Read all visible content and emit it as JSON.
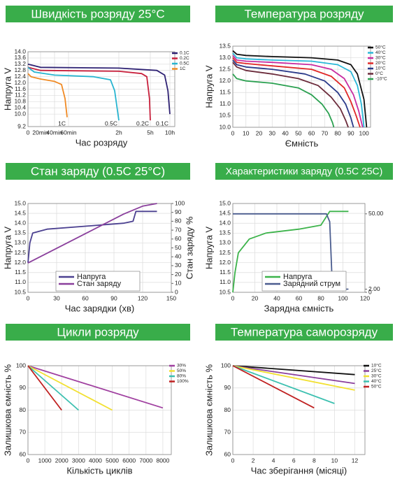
{
  "chart_data": [
    {
      "type": "line",
      "title": "Швидкість розряду 25°C",
      "xlabel": "Час розряду",
      "ylabel": "Напруга V",
      "xlim": [
        0,
        600
      ],
      "xticks": [
        0,
        {
          "value": 20,
          "label": "20min"
        },
        {
          "value": 40,
          "label": "40min"
        },
        {
          "value": 60,
          "label": "60min"
        },
        {
          "value": 120,
          "label": "2h"
        },
        {
          "value": 300,
          "label": "5h"
        },
        {
          "value": 600,
          "label": "10h"
        }
      ],
      "ylim": [
        9.2,
        14.0
      ],
      "yticks": [
        9.2,
        {
          "value": 10,
          "label": "10.0"
        },
        10.4,
        10.8,
        11.2,
        11.6,
        {
          "value": 12,
          "label": "12.0"
        },
        12.4,
        12.8,
        13.2,
        13.6,
        {
          "value": 14,
          "label": "14.0"
        }
      ],
      "grid": true,
      "legend": "upper right",
      "end_labels": true,
      "series": [
        {
          "name": "0.1C",
          "color": "#2e2173",
          "x": [
            0,
            20,
            120,
            400,
            520,
            570,
            600
          ],
          "values": [
            13.2,
            13.0,
            12.95,
            12.8,
            12.5,
            11.5,
            10.0
          ]
        },
        {
          "name": "0.2C",
          "color": "#c8203c",
          "x": [
            0,
            20,
            120,
            250,
            280,
            295,
            300
          ],
          "values": [
            13.0,
            12.8,
            12.75,
            12.6,
            12.4,
            11.0,
            9.6
          ]
        },
        {
          "name": "0.5C",
          "color": "#27b4d0",
          "x": [
            0,
            10,
            40,
            90,
            110,
            115,
            120
          ],
          "values": [
            13.0,
            12.7,
            12.5,
            12.4,
            12.2,
            11.5,
            9.6
          ]
        },
        {
          "name": "1C",
          "color": "#f08a24",
          "x": [
            0,
            5,
            20,
            40,
            50,
            55,
            58
          ],
          "values": [
            12.6,
            12.4,
            12.25,
            12.1,
            11.9,
            11.0,
            9.8
          ]
        }
      ]
    },
    {
      "type": "line",
      "title": "Температура розряду",
      "xlabel": "Ємність",
      "ylabel": "Напруга V",
      "xlim": [
        0,
        105
      ],
      "xticks": [
        0,
        10,
        20,
        30,
        40,
        50,
        60,
        70,
        80,
        90,
        100
      ],
      "ylim": [
        10.0,
        13.5
      ],
      "yticks": [
        {
          "value": 10,
          "label": "10.0"
        },
        10.5,
        {
          "value": 11,
          "label": "11.0"
        },
        11.5,
        {
          "value": 12,
          "label": "12.0"
        },
        12.5,
        {
          "value": 13,
          "label": "13.0"
        },
        13.5
      ],
      "grid": true,
      "legend": "upper right",
      "series": [
        {
          "name": "50°C",
          "color": "#111111",
          "x": [
            0,
            3,
            10,
            30,
            60,
            80,
            90,
            95,
            100,
            102
          ],
          "values": [
            13.3,
            13.15,
            13.1,
            13.05,
            13.0,
            12.9,
            12.7,
            12.3,
            11.2,
            10.0
          ]
        },
        {
          "name": "40°C",
          "color": "#2ab8d8",
          "x": [
            0,
            3,
            10,
            30,
            60,
            80,
            90,
            95,
            98,
            100
          ],
          "values": [
            13.2,
            13.0,
            12.95,
            12.9,
            12.85,
            12.7,
            12.4,
            11.8,
            11.0,
            10.0
          ]
        },
        {
          "name": "30°C",
          "color": "#c82ca0",
          "x": [
            0,
            3,
            10,
            30,
            60,
            75,
            85,
            92,
            96,
            99
          ],
          "values": [
            13.1,
            12.9,
            12.85,
            12.8,
            12.7,
            12.5,
            12.1,
            11.4,
            10.7,
            10.0
          ]
        },
        {
          "name": "20°C",
          "color": "#e02828",
          "x": [
            0,
            3,
            10,
            30,
            60,
            75,
            85,
            90,
            94,
            97
          ],
          "values": [
            13.0,
            12.8,
            12.75,
            12.65,
            12.5,
            12.2,
            11.7,
            11.1,
            10.5,
            10.0
          ]
        },
        {
          "name": "10°C",
          "color": "#2a3a8a",
          "x": [
            0,
            3,
            10,
            30,
            55,
            70,
            80,
            86,
            90,
            92
          ],
          "values": [
            12.9,
            12.7,
            12.6,
            12.5,
            12.3,
            12.0,
            11.5,
            11.0,
            10.4,
            10.0
          ]
        },
        {
          "name": "0°C",
          "color": "#6b2b3b",
          "x": [
            0,
            3,
            10,
            30,
            50,
            65,
            75,
            82,
            86,
            88
          ],
          "values": [
            12.8,
            12.6,
            12.45,
            12.3,
            12.1,
            11.8,
            11.3,
            10.8,
            10.3,
            10.0
          ]
        },
        {
          "name": "-10°C",
          "color": "#2aa050",
          "x": [
            0,
            3,
            10,
            30,
            50,
            60,
            68,
            73,
            76,
            77
          ],
          "values": [
            12.3,
            12.1,
            12.0,
            11.9,
            11.7,
            11.4,
            11.0,
            10.6,
            10.2,
            10.0
          ]
        }
      ]
    },
    {
      "type": "line",
      "title": "Стан заряду (0.5C 25°C)",
      "xlabel": "Час зарядки (хв)",
      "ylabel": "Напруга V",
      "y2label": "Стан заряду %",
      "xlim": [
        0,
        150
      ],
      "xticks": [
        0,
        30,
        60,
        90,
        120,
        150
      ],
      "ylim": [
        10.5,
        15.0
      ],
      "yticks": [
        10.5,
        {
          "value": 11,
          "label": "11.0"
        },
        11.5,
        {
          "value": 12,
          "label": "12.0"
        },
        12.5,
        {
          "value": 13,
          "label": "13.0"
        },
        13.5,
        {
          "value": 14,
          "label": "14.0"
        },
        14.5,
        {
          "value": 15,
          "label": "15.0"
        }
      ],
      "y2lim": [
        0,
        100
      ],
      "y2ticks": [
        0,
        10,
        20,
        30,
        40,
        50,
        60,
        70,
        80,
        90,
        100
      ],
      "grid": true,
      "legend": "lower center",
      "series": [
        {
          "name": "Напруга",
          "color": "#4b4090",
          "x": [
            0,
            2,
            5,
            20,
            60,
            100,
            110,
            113,
            135
          ],
          "values": [
            12.0,
            13.0,
            13.5,
            13.7,
            13.85,
            14.0,
            14.1,
            14.6,
            14.6
          ]
        },
        {
          "name": "Стан заряду",
          "color": "#8a3f9c",
          "axis": "y2",
          "x": [
            0,
            60,
            100,
            120,
            135
          ],
          "values": [
            33,
            66,
            88,
            97,
            100
          ]
        }
      ]
    },
    {
      "type": "line",
      "title": "Характеристики заряду (0.5C 25C)",
      "xlabel": "Зарядна ємність",
      "ylabel": "Напруга V",
      "xlim": [
        0,
        120
      ],
      "xticks": [
        0,
        20,
        40,
        60,
        80,
        100,
        120
      ],
      "ylim": [
        10.5,
        15.0
      ],
      "yticks": [
        10.5,
        {
          "value": 11,
          "label": "11.0"
        },
        11.5,
        {
          "value": 12,
          "label": "12.0"
        },
        12.5,
        {
          "value": 13,
          "label": "13.0"
        },
        13.5,
        {
          "value": 14,
          "label": "14.0"
        },
        14.5,
        {
          "value": 15,
          "label": "15.0"
        }
      ],
      "y2lim": [
        0,
        56.6
      ],
      "y2ticks": [
        0,
        {
          "value": 2,
          "label": "2.00"
        },
        {
          "value": 50,
          "label": "50.00"
        }
      ],
      "grid": true,
      "legend": "lower center",
      "series": [
        {
          "name": "Напруга",
          "color": "#3cb34a",
          "x": [
            0,
            2,
            5,
            15,
            30,
            60,
            80,
            88,
            105
          ],
          "values": [
            10.5,
            11.5,
            12.5,
            13.2,
            13.5,
            13.7,
            13.9,
            14.6,
            14.6
          ]
        },
        {
          "name": "Зарядний струм",
          "color": "#4b5d8f",
          "axis": "y2",
          "x": [
            0,
            85,
            88,
            90,
            95,
            100,
            105
          ],
          "values": [
            50,
            50,
            45,
            10,
            4,
            2,
            2
          ]
        }
      ]
    },
    {
      "type": "line",
      "title": "Цикли розряду",
      "xlabel": "Кількість циклів",
      "ylabel": "Залишкова ємність %",
      "xlim": [
        0,
        8500
      ],
      "xticks": [
        0,
        1000,
        2000,
        3000,
        4000,
        5000,
        6000,
        7000,
        8000
      ],
      "ylim": [
        60,
        100
      ],
      "yticks": [
        60,
        70,
        80,
        90,
        100
      ],
      "grid": true,
      "legend": "upper right",
      "series": [
        {
          "name": "30%",
          "color": "#a040a0",
          "x": [
            0,
            8000
          ],
          "values": [
            100,
            81
          ]
        },
        {
          "name": "50%",
          "color": "#f2e030",
          "x": [
            0,
            5000
          ],
          "values": [
            100,
            80
          ]
        },
        {
          "name": "80%",
          "color": "#3cc0b0",
          "x": [
            0,
            3000
          ],
          "values": [
            100,
            80
          ]
        },
        {
          "name": "100%",
          "color": "#c02020",
          "x": [
            0,
            2000
          ],
          "values": [
            100,
            80
          ]
        }
      ]
    },
    {
      "type": "line",
      "title": "Температура саморозряду",
      "xlabel": "Час зберігання (місяці)",
      "ylabel": "Залишкова ємність %",
      "xlim": [
        0,
        13
      ],
      "xticks": [
        0,
        2,
        4,
        6,
        8,
        10,
        12
      ],
      "ylim": [
        60,
        100
      ],
      "yticks": [
        60,
        70,
        80,
        90,
        100
      ],
      "grid": true,
      "legend": "upper right",
      "series": [
        {
          "name": "10°C",
          "color": "#111111",
          "x": [
            0,
            12
          ],
          "values": [
            100,
            96
          ]
        },
        {
          "name": "25°C",
          "color": "#8a3f9c",
          "x": [
            0,
            12
          ],
          "values": [
            100,
            92
          ]
        },
        {
          "name": "30°C",
          "color": "#f2e030",
          "x": [
            0,
            12
          ],
          "values": [
            100,
            89
          ]
        },
        {
          "name": "40°C",
          "color": "#3cc0b0",
          "x": [
            0,
            10
          ],
          "values": [
            100,
            83
          ]
        },
        {
          "name": "50°C",
          "color": "#c02020",
          "x": [
            0,
            8
          ],
          "values": [
            100,
            81
          ]
        }
      ]
    }
  ]
}
